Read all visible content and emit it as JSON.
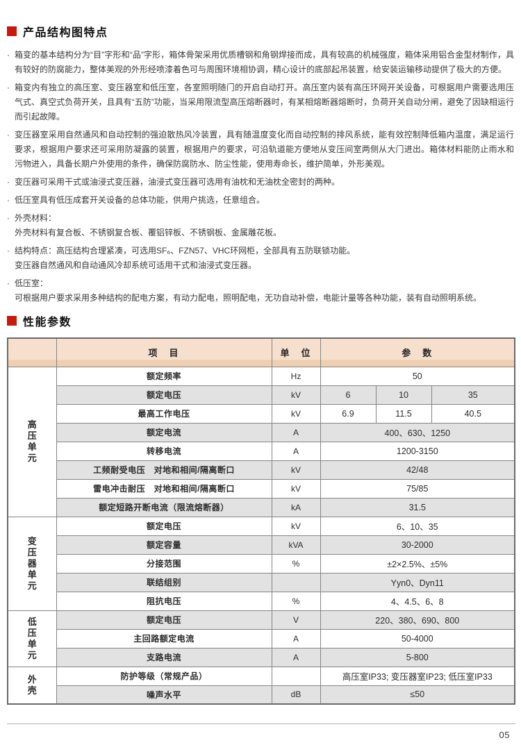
{
  "colors": {
    "accent_red": "#c7190e",
    "table_header_pink": "#f7dfcd",
    "table_header_pink_dark": "#eecfb0",
    "row_gray": "#e2e2e2",
    "border_gray": "#848484",
    "footer_line_gray": "#b2b2b2"
  },
  "sections": {
    "features": {
      "title": "产品结构图特点",
      "bullet_char": "·",
      "items": [
        "箱变的基本结构分为“目”字形和“品”字形，箱体骨架采用优质槽钢和角钢焊接而成，具有较高的机械强度，箱体采用铝合金型材制作，具有较好的防腐能力，整体美观的外形经喷漆着色可与周围环境相协调，精心设计的底部起吊装置，给安装运输移动提供了极大的方便。",
        "箱变内有独立的高压室、变压器室和低压室，各室照明随门的开启自动打开。高压室内装有高压环网开关设备，可根据用户需要选用压气式、真空式负荷开关，且具有“五防”功能，当采用限流型高压熔断器时，有某相熔断器熔断时，负荷开关自动分闸，避免了因缺相运行而引起故障。",
        "变压器室采用自然通风和自动控制的强迫散热风冷装置，具有随温度变化而自动控制的排风系统，能有效控制降低箱内温度，满足运行要求，根据用户要求还可采用防凝露的装置，根据用户的要求，可沿轨道能方便地从变压间室两侧从大门进出。箱体材料能防止雨水和污物进入，具备长期户外使用的条件，确保防腐防水、防尘性能，使用寿命长，维护简单，外形美观。",
        "变压器可采用干式或油浸式变压器，油浸式变压器可选用有油枕和无油枕全密封的两种。",
        "低压室具有低压成套开关设备的总体功能，供用户挑选，任意组合。",
        "外壳材料：\n外壳材料有复合板、不锈钢复合板、覆铝锌板、不锈钢板、金属雕花板。",
        "结构特点：高压结构合理紧凑，可选用SF₆、FZN57、VHC环网柜，全部具有五防联锁功能。\n变压器自然通风和自动通风冷却系统可适用干式和油浸式变压器。",
        "低压室：\n可根据用户要求采用多种结构的配电方案，有动力配电，照明配电，无功自动补偿，电能计量等各种功能，装有自动照明系统。"
      ]
    },
    "parameters": {
      "title": "性能参数",
      "table": {
        "headers": {
          "group": "",
          "item": "项　目",
          "unit": "单　位",
          "param": "参　数"
        },
        "groups": [
          {
            "label": "高压单元",
            "span": 8
          },
          {
            "label": "变压器单元",
            "span": 5
          },
          {
            "label": "低压单元",
            "span": 3
          },
          {
            "label": "外壳",
            "span": 2
          }
        ],
        "rows": [
          {
            "item": "额定频率",
            "unit": "Hz",
            "values": [
              "50"
            ]
          },
          {
            "item": "额定电压",
            "unit": "kV",
            "values": [
              "6",
              "10",
              "35"
            ]
          },
          {
            "item": "最高工作电压",
            "unit": "kV",
            "values": [
              "6.9",
              "11.5",
              "40.5"
            ]
          },
          {
            "item": "额定电流",
            "unit": "A",
            "values": [
              "400、630、1250"
            ]
          },
          {
            "item": "转移电流",
            "unit": "A",
            "values": [
              "1200-3150"
            ]
          },
          {
            "item": "工频耐受电压　对地和相间/隔离断口",
            "unit": "kV",
            "values": [
              "42/48"
            ]
          },
          {
            "item": "雷电冲击耐压　对地和相间/隔离断口",
            "unit": "kV",
            "values": [
              "75/85"
            ]
          },
          {
            "item": "额定短路开断电流（限流熔断器）",
            "unit": "kA",
            "values": [
              "31.5"
            ]
          },
          {
            "item": "额定电压",
            "unit": "kV",
            "values": [
              "6、10、35"
            ]
          },
          {
            "item": "额定容量",
            "unit": "kVA",
            "values": [
              "30-2000"
            ]
          },
          {
            "item": "分接范围",
            "unit": "%",
            "values": [
              "±2×2.5%、±5%"
            ]
          },
          {
            "item": "联结组别",
            "unit": "",
            "values": [
              "Yyn0、Dyn11"
            ]
          },
          {
            "item": "阻抗电压",
            "unit": "%",
            "values": [
              "4、4.5、6、8"
            ]
          },
          {
            "item": "额定电压",
            "unit": "V",
            "values": [
              "220、380、690、800"
            ]
          },
          {
            "item": "主回路额定电流",
            "unit": "A",
            "values": [
              "50-4000"
            ]
          },
          {
            "item": "支路电流",
            "unit": "A",
            "values": [
              "5-800"
            ]
          },
          {
            "item": "防护等级（常规产品）",
            "unit": "",
            "values": [
              "高压室IP33; 变压器室IP23; 低压室IP33"
            ]
          },
          {
            "item": "噪声水平",
            "unit": "dB",
            "values": [
              "≤50"
            ]
          }
        ]
      }
    }
  },
  "footer": {
    "page_number": "05"
  }
}
